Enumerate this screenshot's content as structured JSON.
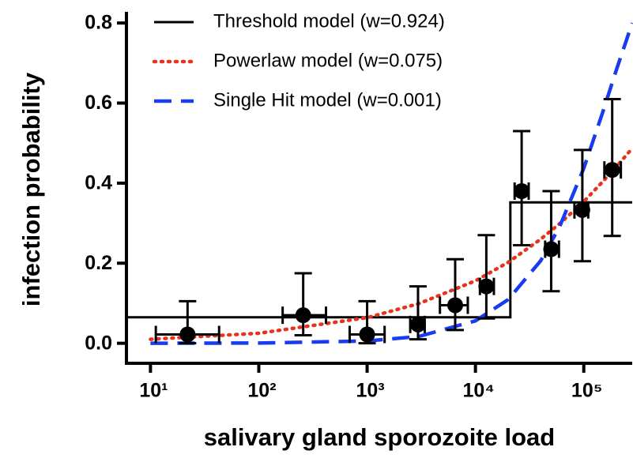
{
  "chart_data": {
    "type": "line",
    "xlabel": "salivary gland sporozoite load",
    "ylabel": "infection probability",
    "xscale": "log",
    "xlim": [
      6,
      280000
    ],
    "ylim": [
      -0.05,
      0.82
    ],
    "xticks": [
      {
        "value": 10,
        "label": "10¹"
      },
      {
        "value": 100,
        "label": "10²"
      },
      {
        "value": 1000,
        "label": "10³"
      },
      {
        "value": 10000,
        "label": "10⁴"
      },
      {
        "value": 100000,
        "label": "10⁵"
      }
    ],
    "yticks": [
      {
        "value": 0,
        "label": "0.0"
      },
      0.2,
      0.4,
      0.6,
      0.8
    ],
    "legend": "upper left",
    "series": [
      {
        "name": "Threshold model (w=0.924)",
        "color": "#000000",
        "style": "solid",
        "x": [
          6,
          21000,
          21000,
          280000
        ],
        "values": [
          0.065,
          0.065,
          0.352,
          0.352
        ]
      },
      {
        "name": "Powerlaw model (w=0.075)",
        "color": "#e8331c",
        "style": "dotted",
        "x": [
          10,
          100,
          1000,
          3000,
          10000,
          20000,
          40000,
          60000,
          100000,
          150000,
          200000,
          280000
        ],
        "values": [
          0.01,
          0.025,
          0.064,
          0.099,
          0.156,
          0.202,
          0.26,
          0.299,
          0.354,
          0.404,
          0.441,
          0.487
        ]
      },
      {
        "name": "Single Hit model (w=0.001)",
        "color": "#1a3cf0",
        "style": "dashed",
        "x": [
          10,
          100,
          1000,
          3000,
          10000,
          20000,
          40000,
          60000,
          100000,
          150000,
          200000,
          280000
        ],
        "values": [
          0.0001,
          0.0006,
          0.0057,
          0.017,
          0.056,
          0.109,
          0.206,
          0.292,
          0.437,
          0.578,
          0.683,
          0.8
        ]
      }
    ],
    "points": {
      "color": "#000000",
      "x": [
        22,
        257,
        1000,
        2950,
        6500,
        12600,
        26700,
        50000,
        97000,
        183000
      ],
      "values": [
        0.022,
        0.07,
        0.022,
        0.047,
        0.095,
        0.142,
        0.38,
        0.235,
        0.333,
        0.433
      ],
      "y_low": [
        0.0,
        0.02,
        0.0,
        0.01,
        0.033,
        0.062,
        0.245,
        0.13,
        0.205,
        0.268
      ],
      "y_high": [
        0.105,
        0.175,
        0.105,
        0.142,
        0.21,
        0.27,
        0.53,
        0.38,
        0.483,
        0.61
      ],
      "x_low": [
        11.2,
        166,
        690,
        2500,
        4700,
        11000,
        23000,
        44000,
        82000,
        155000
      ],
      "x_high": [
        43,
        417,
        1450,
        3400,
        8500,
        14800,
        31000,
        59000,
        110000,
        220000
      ]
    }
  }
}
